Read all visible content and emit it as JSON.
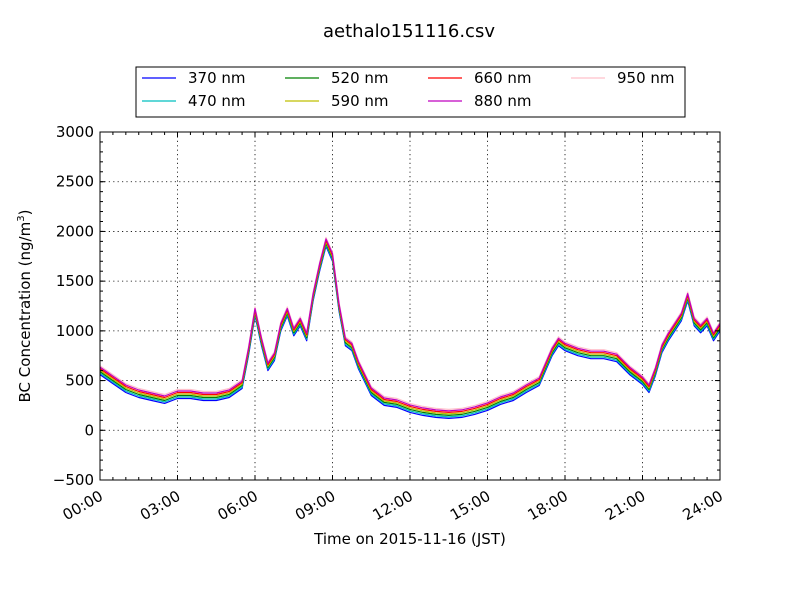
{
  "chart_data": {
    "type": "line",
    "title": "aethalo151116.csv",
    "xlabel": "Time on 2015-11-16 (JST)",
    "ylabel_main": "BC Concentration (ng/m",
    "ylabel_sup": "3",
    "ylabel_end": ")",
    "ylim": [
      -500,
      3000
    ],
    "yticks": [
      -500,
      0,
      500,
      1000,
      1500,
      2000,
      2500,
      3000
    ],
    "ytick_labels": [
      "−500",
      "0",
      "500",
      "1000",
      "1500",
      "2000",
      "2500",
      "3000"
    ],
    "xlim": [
      "00:00",
      "24:00"
    ],
    "xticks": [
      0,
      3,
      6,
      9,
      12,
      15,
      18,
      21,
      24
    ],
    "xtick_labels": [
      "00:00",
      "03:00",
      "06:00",
      "09:00",
      "12:00",
      "15:00",
      "18:00",
      "21:00",
      "24:00"
    ],
    "grid": true,
    "legend_position": "top-center",
    "x_hours": [
      0,
      0.5,
      1,
      1.5,
      2,
      2.5,
      3,
      3.5,
      4,
      4.5,
      5,
      5.5,
      5.75,
      6,
      6.25,
      6.5,
      6.75,
      7,
      7.25,
      7.5,
      7.75,
      8,
      8.25,
      8.5,
      8.75,
      9,
      9.25,
      9.5,
      9.75,
      10,
      10.5,
      11,
      11.5,
      12,
      12.5,
      13,
      13.5,
      14,
      14.5,
      15,
      15.5,
      16,
      16.5,
      17,
      17.25,
      17.5,
      17.75,
      18,
      18.5,
      19,
      19.5,
      20,
      20.5,
      21,
      21.25,
      21.5,
      21.75,
      22,
      22.25,
      22.5,
      22.75,
      23,
      23.25,
      23.5,
      23.75,
      24
    ],
    "series": [
      {
        "name": "370 nm",
        "color": "#0000ff",
        "offset": 0,
        "values": [
          560,
          470,
          380,
          330,
          300,
          270,
          320,
          320,
          300,
          300,
          330,
          420,
          750,
          1150,
          850,
          600,
          700,
          1000,
          1150,
          950,
          1050,
          900,
          1300,
          1600,
          1850,
          1700,
          1200,
          850,
          800,
          620,
          350,
          250,
          230,
          180,
          150,
          130,
          120,
          130,
          160,
          200,
          260,
          300,
          380,
          450,
          600,
          750,
          850,
          800,
          750,
          720,
          720,
          690,
          560,
          460,
          380,
          550,
          780,
          900,
          1000,
          1100,
          1300,
          1050,
          980,
          1050,
          900,
          1000
        ]
      },
      {
        "name": "470 nm",
        "color": "#00bfbf",
        "offset": 15,
        "values": [
          560,
          470,
          380,
          330,
          300,
          270,
          320,
          320,
          300,
          300,
          330,
          420,
          750,
          1150,
          850,
          600,
          700,
          1000,
          1150,
          950,
          1050,
          900,
          1300,
          1600,
          1850,
          1700,
          1200,
          850,
          800,
          620,
          350,
          250,
          230,
          180,
          150,
          130,
          120,
          130,
          160,
          200,
          260,
          300,
          380,
          450,
          600,
          750,
          850,
          800,
          750,
          720,
          720,
          690,
          560,
          460,
          380,
          550,
          780,
          900,
          1000,
          1100,
          1300,
          1050,
          980,
          1050,
          900,
          1000
        ]
      },
      {
        "name": "520 nm",
        "color": "#008000",
        "offset": 30,
        "values": [
          560,
          470,
          380,
          330,
          300,
          270,
          320,
          320,
          300,
          300,
          330,
          420,
          750,
          1150,
          850,
          600,
          700,
          1000,
          1150,
          950,
          1050,
          900,
          1300,
          1600,
          1850,
          1700,
          1200,
          850,
          800,
          620,
          350,
          250,
          230,
          180,
          150,
          130,
          120,
          130,
          160,
          200,
          260,
          300,
          380,
          450,
          600,
          750,
          850,
          800,
          750,
          720,
          720,
          690,
          560,
          460,
          380,
          550,
          780,
          900,
          1000,
          1100,
          1300,
          1050,
          980,
          1050,
          900,
          1000
        ]
      },
      {
        "name": "590 nm",
        "color": "#bfbf00",
        "offset": 45,
        "values": [
          560,
          470,
          380,
          330,
          300,
          270,
          320,
          320,
          300,
          300,
          330,
          420,
          750,
          1150,
          850,
          600,
          700,
          1000,
          1150,
          950,
          1050,
          900,
          1300,
          1600,
          1850,
          1700,
          1200,
          850,
          800,
          620,
          350,
          250,
          230,
          180,
          150,
          130,
          120,
          130,
          160,
          200,
          260,
          300,
          380,
          450,
          600,
          750,
          850,
          800,
          750,
          720,
          720,
          690,
          560,
          460,
          380,
          550,
          780,
          900,
          1000,
          1100,
          1300,
          1050,
          980,
          1050,
          900,
          1000
        ]
      },
      {
        "name": "660 nm",
        "color": "#ff0000",
        "offset": 60,
        "values": [
          560,
          470,
          380,
          330,
          300,
          270,
          320,
          320,
          300,
          300,
          330,
          420,
          750,
          1150,
          850,
          600,
          700,
          1000,
          1150,
          950,
          1050,
          900,
          1300,
          1600,
          1850,
          1700,
          1200,
          850,
          800,
          620,
          350,
          250,
          230,
          180,
          150,
          130,
          120,
          130,
          160,
          200,
          260,
          300,
          380,
          450,
          600,
          750,
          850,
          800,
          750,
          720,
          720,
          690,
          560,
          460,
          380,
          550,
          780,
          900,
          1000,
          1100,
          1300,
          1050,
          980,
          1050,
          900,
          1000
        ]
      },
      {
        "name": "880 nm",
        "color": "#bf00bf",
        "offset": 75,
        "values": [
          560,
          470,
          380,
          330,
          300,
          270,
          320,
          320,
          300,
          300,
          330,
          420,
          750,
          1150,
          850,
          600,
          700,
          1000,
          1150,
          950,
          1050,
          900,
          1300,
          1600,
          1850,
          1700,
          1200,
          850,
          800,
          620,
          350,
          250,
          230,
          180,
          150,
          130,
          120,
          130,
          160,
          200,
          260,
          300,
          380,
          450,
          600,
          750,
          850,
          800,
          750,
          720,
          720,
          690,
          560,
          460,
          380,
          550,
          780,
          900,
          1000,
          1100,
          1300,
          1050,
          980,
          1050,
          900,
          1000
        ]
      },
      {
        "name": "950 nm",
        "color": "#ffc0cb",
        "offset": 90,
        "values": [
          560,
          470,
          380,
          330,
          300,
          270,
          320,
          320,
          300,
          300,
          330,
          420,
          750,
          1150,
          850,
          600,
          700,
          1000,
          1150,
          950,
          1050,
          900,
          1300,
          1600,
          1850,
          1700,
          1200,
          850,
          800,
          620,
          350,
          250,
          230,
          180,
          150,
          130,
          120,
          130,
          160,
          200,
          260,
          300,
          380,
          450,
          600,
          750,
          850,
          800,
          750,
          720,
          720,
          690,
          560,
          460,
          380,
          550,
          780,
          900,
          1000,
          1100,
          1300,
          1050,
          980,
          1050,
          900,
          1000
        ]
      }
    ]
  }
}
